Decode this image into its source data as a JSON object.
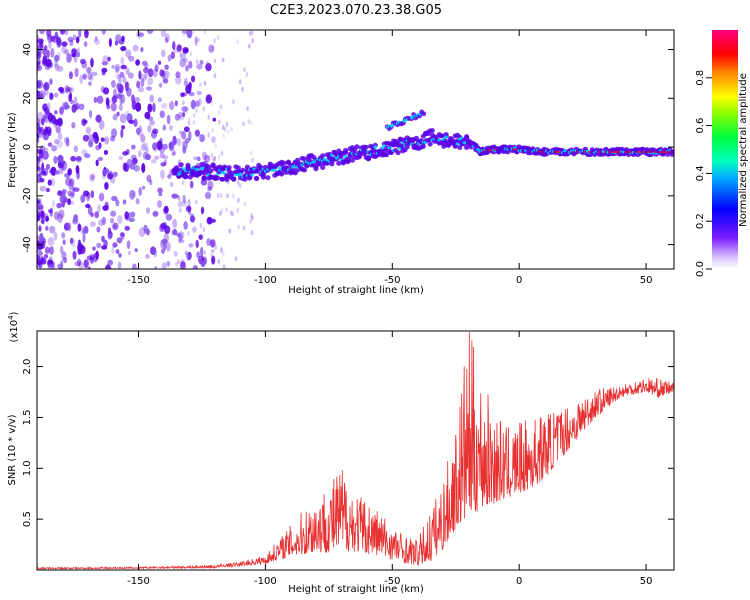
{
  "title": "C2E3.2023.070.23.38.G05",
  "colors": {
    "trace": "#e83030",
    "sparse": "#8855ee",
    "dense": "#5a00e6",
    "band_mid": "#00d0ff",
    "band_core": "#ff0000",
    "axis": "#000000"
  },
  "chart_data": [
    {
      "type": "heatmap",
      "xlabel": "Height of straight line (km)",
      "ylabel": "Frequency (Hz)",
      "xlim": [
        -190,
        61
      ],
      "ylim": [
        -50,
        48
      ],
      "xticks": [
        -150,
        -100,
        -50,
        0,
        50
      ],
      "yticks": [
        -40,
        -20,
        0,
        20,
        40
      ],
      "grid": false,
      "colorbar": {
        "label": "Normalized spectral amplitude",
        "range": [
          0.0,
          1.0
        ],
        "ticks": [
          "0.0",
          "0.2",
          "0.4",
          "0.6",
          "0.8"
        ],
        "colormap": [
          "#e8d8ff",
          "#7a1cff",
          "#0000ff",
          "#00aaff",
          "#00ff80",
          "#66ff00",
          "#ffff00",
          "#ff8800",
          "#ff0000",
          "#ff0080"
        ]
      },
      "ridge": {
        "x": [
          -135,
          -120,
          -110,
          -100,
          -90,
          -80,
          -70,
          -60,
          -50,
          -40,
          -35,
          -30,
          -20,
          -15,
          -10,
          0,
          10,
          20,
          40,
          61
        ],
        "frequency": [
          -10,
          -10,
          -11,
          -10,
          -8,
          -6,
          -4,
          -2,
          0,
          2,
          4,
          3,
          2,
          -2,
          -1,
          -1,
          -2,
          -2,
          -2,
          -2
        ]
      },
      "upper_branch": {
        "x": [
          -52,
          -45,
          -40,
          -37
        ],
        "frequency": [
          8,
          11,
          13,
          15
        ]
      }
    },
    {
      "type": "line",
      "xlabel": "Height of straight line (km)",
      "ylabel": "SNR (10 * v/v)",
      "y_multiplier": "(x10",
      "y_multiplier_exp": "4",
      "y_multiplier_close": ")",
      "xlim": [
        -190,
        61
      ],
      "ylim": [
        0,
        23500
      ],
      "xticks": [
        -150,
        -100,
        -50,
        0,
        50
      ],
      "yticks": [
        5000,
        10000,
        15000,
        20000
      ],
      "ytick_labels": [
        "0.5",
        "1.0",
        "1.5",
        "2.0"
      ],
      "grid": false,
      "envelope": {
        "x": [
          -190,
          -150,
          -120,
          -110,
          -100,
          -95,
          -90,
          -85,
          -80,
          -75,
          -70,
          -65,
          -60,
          -55,
          -50,
          -45,
          -40,
          -35,
          -30,
          -25,
          -20,
          -15,
          -10,
          -5,
          0,
          5,
          10,
          15,
          20,
          30,
          40,
          50,
          55,
          61
        ],
        "low": [
          100,
          150,
          200,
          400,
          600,
          1000,
          1300,
          1500,
          1700,
          1700,
          1900,
          1800,
          1600,
          1400,
          1000,
          700,
          400,
          800,
          2000,
          4000,
          5000,
          6000,
          6500,
          7000,
          7500,
          8000,
          9000,
          10500,
          12000,
          15000,
          17000,
          17500,
          17000,
          17500
        ],
        "high": [
          250,
          300,
          500,
          800,
          1500,
          3000,
          4500,
          6000,
          7500,
          8500,
          10500,
          8000,
          7000,
          6000,
          4500,
          3500,
          3000,
          6000,
          9000,
          14000,
          24000,
          19000,
          16000,
          14000,
          14500,
          15000,
          15500,
          16000,
          16500,
          17800,
          18300,
          19000,
          18800,
          18500
        ]
      }
    }
  ]
}
